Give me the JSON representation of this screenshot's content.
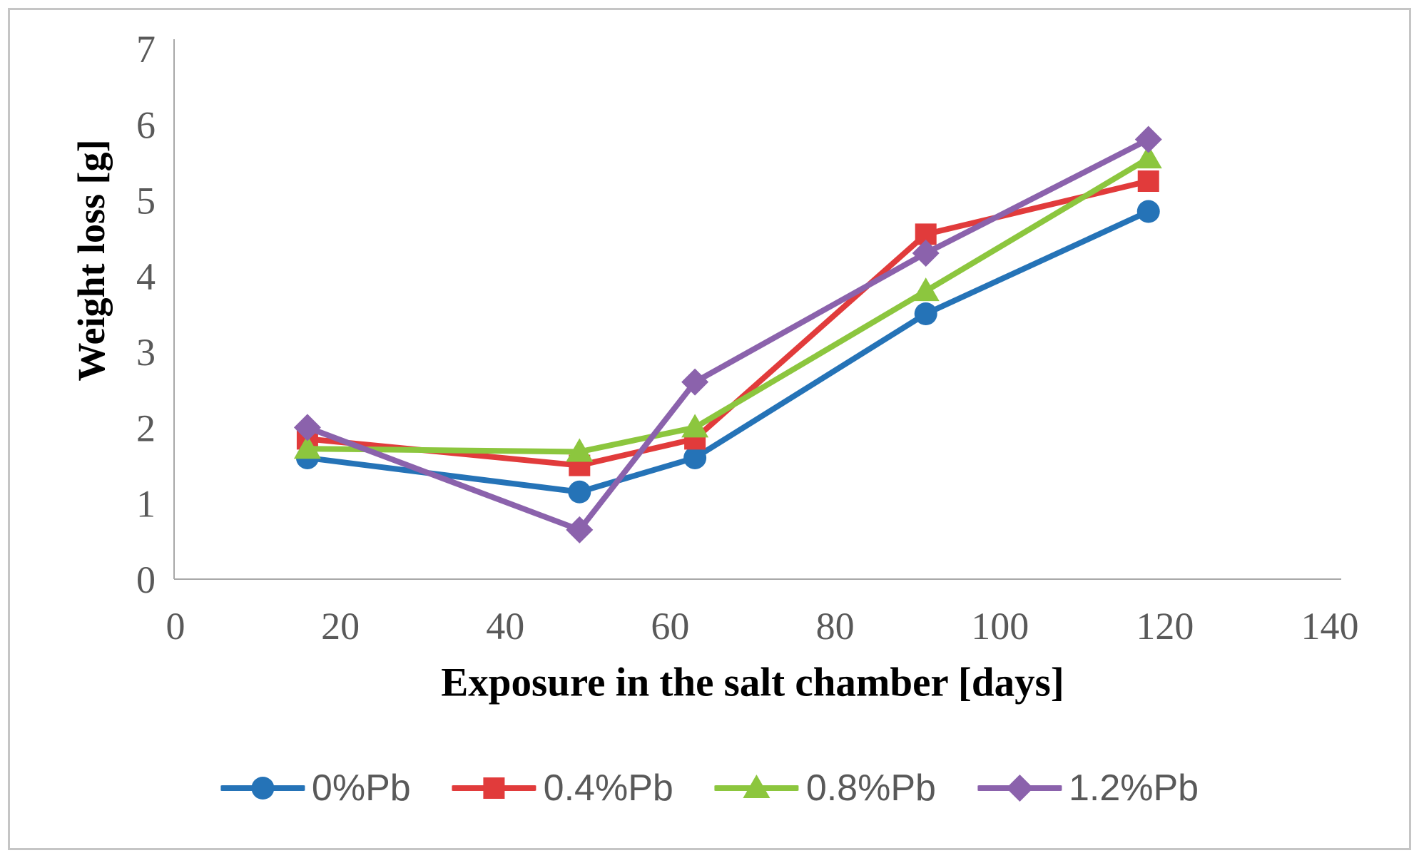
{
  "chart_data": {
    "type": "line",
    "title": "",
    "xlabel": "Exposure in the salt chamber [days]",
    "ylabel": "Weight loss [g]",
    "xlim": [
      0,
      140
    ],
    "ylim": [
      0,
      7
    ],
    "x_ticks": [
      0,
      20,
      40,
      60,
      80,
      100,
      120,
      140
    ],
    "y_ticks": [
      0,
      1,
      2,
      3,
      4,
      5,
      6,
      7
    ],
    "grid": false,
    "legend_position": "bottom",
    "x": [
      16,
      49,
      63,
      91,
      118
    ],
    "series": [
      {
        "name": "0%Pb",
        "marker": "circle",
        "color": "#2573b7",
        "values": [
          1.6,
          1.15,
          1.6,
          3.5,
          4.85
        ]
      },
      {
        "name": "0.4%Pb",
        "marker": "square",
        "color": "#e13b3b",
        "values": [
          1.85,
          1.5,
          1.85,
          4.55,
          5.25
        ]
      },
      {
        "name": "0.8%Pb",
        "marker": "triangle",
        "color": "#8cc63e",
        "values": [
          1.72,
          1.68,
          2.0,
          3.8,
          5.55
        ]
      },
      {
        "name": "1.2%Pb",
        "marker": "diamond",
        "color": "#8b62ac",
        "values": [
          2.0,
          0.65,
          2.6,
          4.3,
          5.8
        ]
      }
    ]
  },
  "styles": {
    "axis_color": "#a8a8a8",
    "tick_label_color": "#595959",
    "title_color": "#000000",
    "legend_text_color": "#595959",
    "frame_border_color": "#c5c5c5",
    "background_color": "#ffffff"
  }
}
